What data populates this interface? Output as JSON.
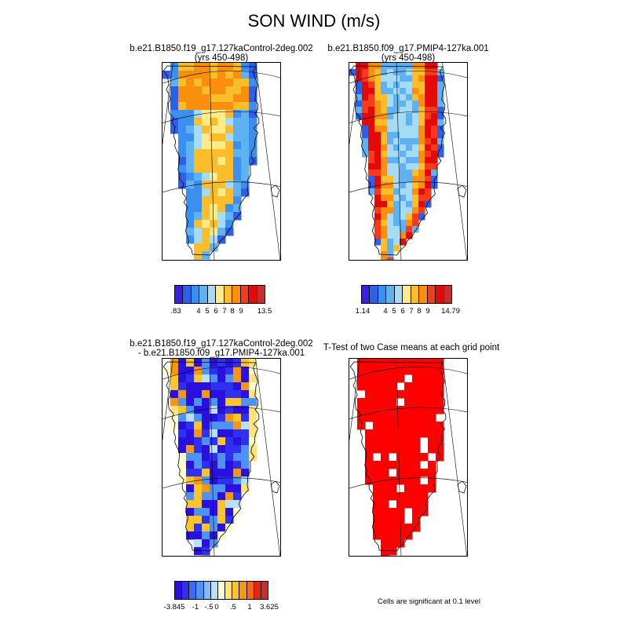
{
  "title": "SON WIND (m/s)",
  "panels": [
    {
      "title_lines": [
        "b.e21.B1850.f19_g17.127kaControl-2deg.002",
        "(yrs 450-498)"
      ]
    },
    {
      "title_lines": [
        "b.e21.B1850.f09_g17.PMIP4-127ka.001",
        "(yrs 450-498)"
      ]
    },
    {
      "title_lines": [
        "b.e21.B1850.f19_g17.127kaControl-2deg.002",
        "- b.e21.B1850.f09_g17.PMIP4-127ka.001"
      ]
    },
    {
      "title_lines": [
        "T-Test of two Case means at each grid point"
      ]
    }
  ],
  "colorbars": [
    {
      "colors": [
        "#3b1fe6",
        "#2f5fe8",
        "#3a8fef",
        "#5fb2f2",
        "#a6dbf5",
        "#fdeb8a",
        "#fbbd2a",
        "#f98f0c",
        "#f53b1a",
        "#e50a0a",
        "#c42e2e"
      ],
      "labels": [
        ".83",
        "4",
        "5",
        "6",
        "7",
        "8",
        "9",
        "13.5"
      ]
    },
    {
      "colors": [
        "#3b1fe6",
        "#2f5fe8",
        "#3a8fef",
        "#5fb2f2",
        "#a6dbf5",
        "#fdeb8a",
        "#fbbd2a",
        "#f98f0c",
        "#f53b1a",
        "#e50a0a",
        "#c42e2e"
      ],
      "labels": [
        "1.14",
        "4",
        "5",
        "6",
        "7",
        "8",
        "9",
        "14.79"
      ]
    },
    {
      "colors": [
        "#2a10e0",
        "#3030f0",
        "#3a6df2",
        "#4d93f5",
        "#7fbaf5",
        "#b8e0f8",
        "#fffbd0",
        "#fde47a",
        "#fbc52a",
        "#f9960f",
        "#f56a12",
        "#e8260f",
        "#cc2e2e"
      ],
      "labels": [
        "-3.845",
        "-1",
        "-.5",
        "0",
        ".5",
        "1",
        "3.625"
      ]
    }
  ],
  "note": "Cells are significant at 0.1 level"
}
